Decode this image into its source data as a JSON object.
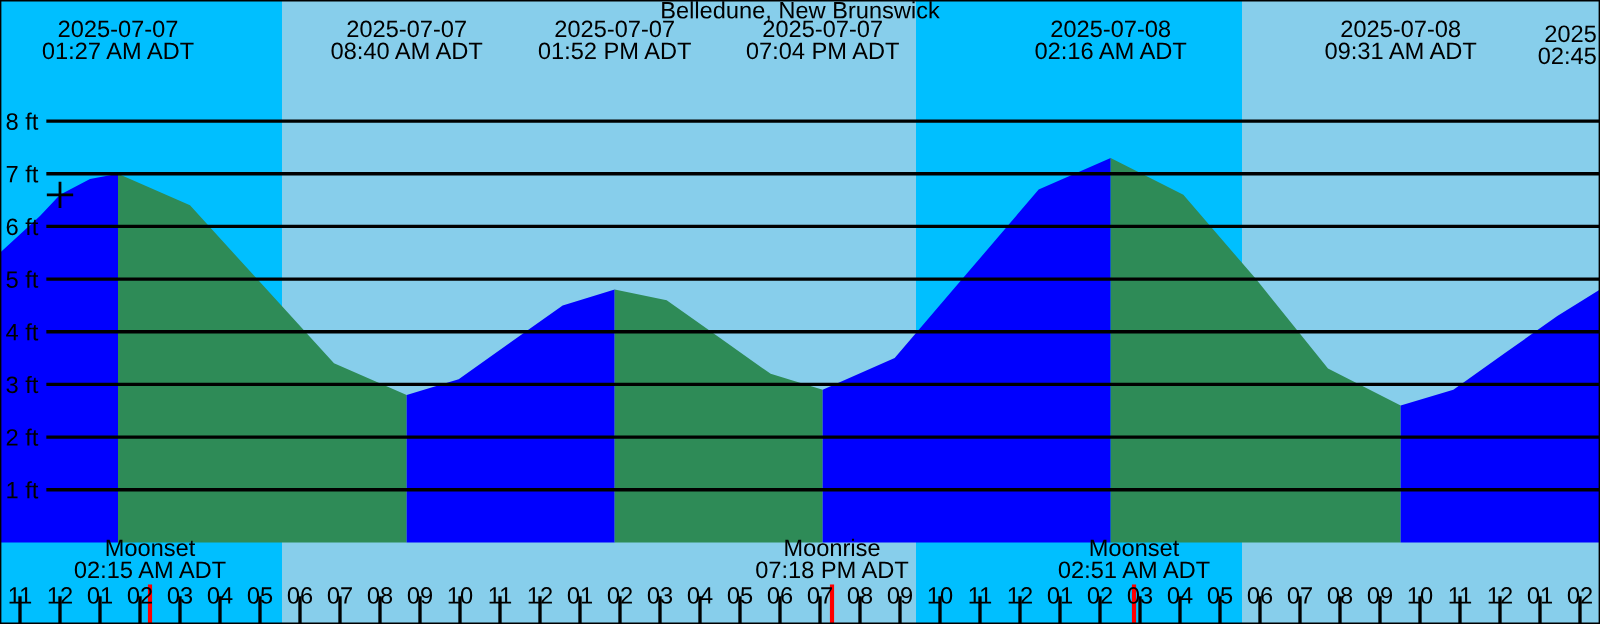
{
  "chart_data": {
    "type": "area",
    "title": "Belledune, New Brunswick",
    "xlim": [
      "2025-07-06T22:30",
      "2025-07-08T14:30"
    ],
    "ylim": [
      -1.55,
      10.3
    ],
    "yticks": [
      {
        "value": 1,
        "label": "1 ft"
      },
      {
        "value": 2,
        "label": "2 ft"
      },
      {
        "value": 3,
        "label": "3 ft"
      },
      {
        "value": 4,
        "label": "4 ft"
      },
      {
        "value": 5,
        "label": "5 ft"
      },
      {
        "value": 6,
        "label": "6 ft"
      },
      {
        "value": 7,
        "label": "7 ft"
      },
      {
        "value": 8,
        "label": "8 ft"
      }
    ],
    "xticks": [
      {
        "value": "2025-07-06T23:00",
        "label": "11"
      },
      {
        "value": "2025-07-07T00:00",
        "label": "12"
      },
      {
        "value": "2025-07-07T01:00",
        "label": "01"
      },
      {
        "value": "2025-07-07T02:00",
        "label": "02"
      },
      {
        "value": "2025-07-07T03:00",
        "label": "03"
      },
      {
        "value": "2025-07-07T04:00",
        "label": "04"
      },
      {
        "value": "2025-07-07T05:00",
        "label": "05"
      },
      {
        "value": "2025-07-07T06:00",
        "label": "06"
      },
      {
        "value": "2025-07-07T07:00",
        "label": "07"
      },
      {
        "value": "2025-07-07T08:00",
        "label": "08"
      },
      {
        "value": "2025-07-07T09:00",
        "label": "09"
      },
      {
        "value": "2025-07-07T10:00",
        "label": "10"
      },
      {
        "value": "2025-07-07T11:00",
        "label": "11"
      },
      {
        "value": "2025-07-07T12:00",
        "label": "12"
      },
      {
        "value": "2025-07-07T13:00",
        "label": "01"
      },
      {
        "value": "2025-07-07T14:00",
        "label": "02"
      },
      {
        "value": "2025-07-07T15:00",
        "label": "03"
      },
      {
        "value": "2025-07-07T16:00",
        "label": "04"
      },
      {
        "value": "2025-07-07T17:00",
        "label": "05"
      },
      {
        "value": "2025-07-07T18:00",
        "label": "06"
      },
      {
        "value": "2025-07-07T19:00",
        "label": "07"
      },
      {
        "value": "2025-07-07T20:00",
        "label": "08"
      },
      {
        "value": "2025-07-07T21:00",
        "label": "09"
      },
      {
        "value": "2025-07-07T22:00",
        "label": "10"
      },
      {
        "value": "2025-07-07T23:00",
        "label": "11"
      },
      {
        "value": "2025-07-08T00:00",
        "label": "12"
      },
      {
        "value": "2025-07-08T01:00",
        "label": "01"
      },
      {
        "value": "2025-07-08T02:00",
        "label": "02"
      },
      {
        "value": "2025-07-08T03:00",
        "label": "03"
      },
      {
        "value": "2025-07-08T04:00",
        "label": "04"
      },
      {
        "value": "2025-07-08T05:00",
        "label": "05"
      },
      {
        "value": "2025-07-08T06:00",
        "label": "06"
      },
      {
        "value": "2025-07-08T07:00",
        "label": "07"
      },
      {
        "value": "2025-07-08T08:00",
        "label": "08"
      },
      {
        "value": "2025-07-08T09:00",
        "label": "09"
      },
      {
        "value": "2025-07-08T10:00",
        "label": "10"
      },
      {
        "value": "2025-07-08T11:00",
        "label": "11"
      },
      {
        "value": "2025-07-08T12:00",
        "label": "12"
      },
      {
        "value": "2025-07-08T13:00",
        "label": "01"
      },
      {
        "value": "2025-07-08T14:00",
        "label": "02"
      }
    ],
    "grid": "y",
    "bands": [
      {
        "axis": "x",
        "from": "2025-07-06T22:30",
        "to": "2025-07-07T05:33",
        "color": "#00bfff"
      },
      {
        "axis": "x",
        "from": "2025-07-07T05:33",
        "to": "2025-07-07T21:24",
        "color": "#87ceeb"
      },
      {
        "axis": "x",
        "from": "2025-07-07T21:24",
        "to": "2025-07-08T05:33",
        "color": "#00bfff"
      },
      {
        "axis": "x",
        "from": "2025-07-08T05:33",
        "to": "2025-07-08T14:30",
        "color": "#87ceeb"
      }
    ],
    "series": [
      {
        "color": "#0000ff",
        "x": [
          "2025-07-06T22:30",
          "2025-07-06T23:30",
          "2025-07-07T00:00",
          "2025-07-07T00:45",
          "2025-07-07T01:27"
        ],
        "values": [
          5.5,
          6.2,
          6.6,
          6.9,
          7.0
        ]
      },
      {
        "color": "#2e8b57",
        "x": [
          "2025-07-07T01:27",
          "2025-07-07T03:15",
          "2025-07-07T05:03",
          "2025-07-07T06:51",
          "2025-07-07T08:40"
        ],
        "values": [
          7.0,
          6.4,
          4.9,
          3.4,
          2.8
        ]
      },
      {
        "color": "#0000ff",
        "x": [
          "2025-07-07T08:40",
          "2025-07-07T09:58",
          "2025-07-07T11:16",
          "2025-07-07T12:34",
          "2025-07-07T13:52"
        ],
        "values": [
          2.8,
          3.1,
          3.8,
          4.5,
          4.8
        ]
      },
      {
        "color": "#2e8b57",
        "x": [
          "2025-07-07T13:52",
          "2025-07-07T15:10",
          "2025-07-07T16:28",
          "2025-07-07T17:46",
          "2025-07-07T19:04"
        ],
        "values": [
          4.8,
          4.6,
          3.9,
          3.2,
          2.9
        ]
      },
      {
        "color": "#0000ff",
        "x": [
          "2025-07-07T19:04",
          "2025-07-07T20:52",
          "2025-07-07T22:40",
          "2025-07-08T00:28",
          "2025-07-08T02:16"
        ],
        "values": [
          2.9,
          3.5,
          5.1,
          6.7,
          7.3
        ]
      },
      {
        "color": "#2e8b57",
        "x": [
          "2025-07-08T02:16",
          "2025-07-08T04:05",
          "2025-07-08T05:54",
          "2025-07-08T07:42",
          "2025-07-08T09:31"
        ],
        "values": [
          7.3,
          6.6,
          5.0,
          3.3,
          2.6
        ]
      },
      {
        "color": "#0000ff",
        "x": [
          "2025-07-08T09:31",
          "2025-07-08T10:50",
          "2025-07-08T12:08",
          "2025-07-08T13:26",
          "2025-07-08T14:30"
        ],
        "values": [
          2.6,
          2.9,
          3.6,
          4.3,
          4.8
        ]
      },
      {
        "type": "scatter",
        "marker": "cross",
        "color": "#000000",
        "x": [
          "2025-07-07T00:00"
        ],
        "values": [
          6.6
        ]
      }
    ],
    "x2lim": [
      "2025-07-06T22:30",
      "2025-07-08T14:30"
    ],
    "x2ticks": [
      {
        "value": "2025-07-07T01:27",
        "label": "2025-07-07\n01:27 AM ADT"
      },
      {
        "value": "2025-07-07T08:40",
        "label": "2025-07-07\n08:40 AM ADT"
      },
      {
        "value": "2025-07-07T13:52",
        "label": "2025-07-07\n01:52 PM ADT"
      },
      {
        "value": "2025-07-07T19:04",
        "label": "2025-07-07\n07:04 PM ADT"
      },
      {
        "value": "2025-07-08T02:16",
        "label": "2025-07-08\n02:16 AM ADT"
      },
      {
        "value": "2025-07-08T09:31",
        "label": "2025-07-08\n09:31 AM ADT"
      }
    ],
    "annotations": [
      "2025\n02:45"
    ],
    "ref_lines": [
      {
        "axis": "x",
        "value": "2025-07-07T02:15",
        "label": "Moonset\n02:15 AM ADT",
        "color": "#ff0000"
      },
      {
        "axis": "x",
        "value": "2025-07-07T19:18",
        "label": "Moonrise\n07:18 PM ADT",
        "color": "#ff0000"
      },
      {
        "axis": "x",
        "value": "2025-07-08T02:51",
        "label": "Moonset\n02:51 AM ADT",
        "color": "#ff0000"
      }
    ]
  }
}
